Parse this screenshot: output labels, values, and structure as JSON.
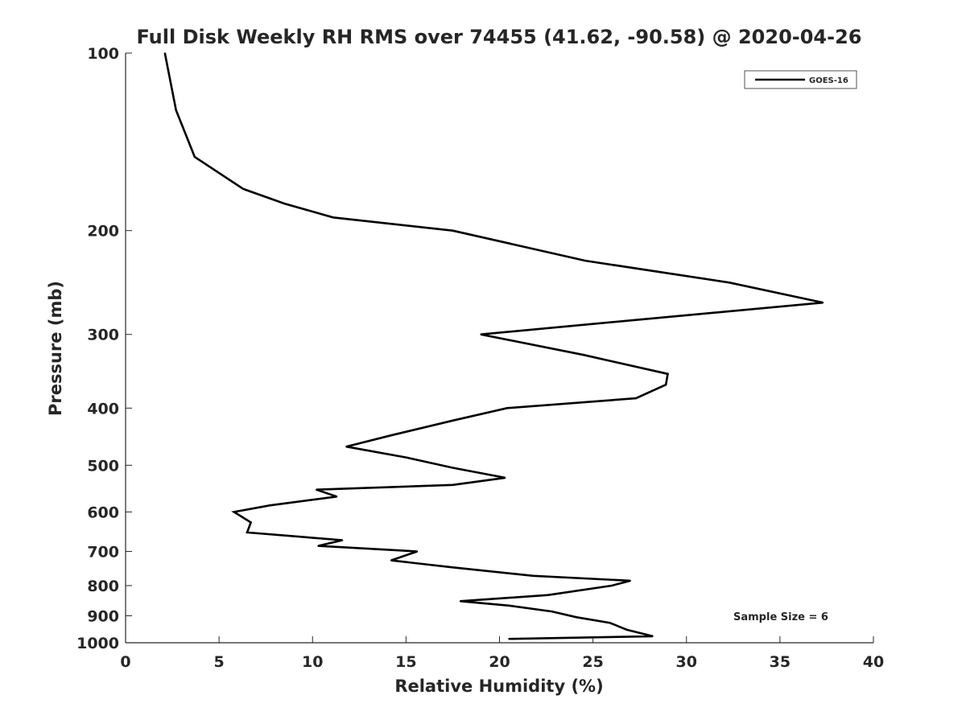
{
  "chart_data": {
    "type": "line",
    "title": "Full Disk Weekly RH RMS over 74455 (41.62, -90.58) @ 2020-04-26",
    "xlabel": "Relative Humidity (%)",
    "ylabel": "Pressure (mb)",
    "xlim": [
      0,
      40
    ],
    "ylim": [
      100,
      1000
    ],
    "y_scale": "log",
    "y_reversed": true,
    "x_ticks": [
      "0",
      "5",
      "10",
      "15",
      "20",
      "25",
      "30",
      "35",
      "40"
    ],
    "y_ticks": [
      "100",
      "200",
      "300",
      "400",
      "500",
      "600",
      "700",
      "800",
      "900",
      "1000"
    ],
    "grid": false,
    "legend_position": "top-right",
    "annotation": "Sample Size = 6",
    "series": [
      {
        "name": "GOES-16",
        "color": "#000000",
        "points": [
          [
            2.1,
            100
          ],
          [
            2.7,
            125
          ],
          [
            3.7,
            150
          ],
          [
            6.3,
            170
          ],
          [
            8.5,
            180
          ],
          [
            11.1,
            190
          ],
          [
            17.5,
            200
          ],
          [
            24.6,
            225
          ],
          [
            32.3,
            245
          ],
          [
            37.3,
            265
          ],
          [
            26.5,
            285
          ],
          [
            19.0,
            300
          ],
          [
            24.5,
            325
          ],
          [
            29.0,
            350
          ],
          [
            28.9,
            365
          ],
          [
            27.3,
            385
          ],
          [
            20.4,
            400
          ],
          [
            17.5,
            420
          ],
          [
            14.2,
            445
          ],
          [
            11.8,
            465
          ],
          [
            15.0,
            485
          ],
          [
            17.5,
            505
          ],
          [
            20.3,
            525
          ],
          [
            17.5,
            540
          ],
          [
            10.2,
            550
          ],
          [
            11.3,
            565
          ],
          [
            7.7,
            585
          ],
          [
            5.8,
            600
          ],
          [
            6.7,
            625
          ],
          [
            6.5,
            650
          ],
          [
            11.6,
            670
          ],
          [
            10.3,
            685
          ],
          [
            15.6,
            700
          ],
          [
            14.2,
            725
          ],
          [
            17.5,
            745
          ],
          [
            21.8,
            770
          ],
          [
            27.0,
            785
          ],
          [
            26.0,
            800
          ],
          [
            22.6,
            830
          ],
          [
            17.9,
            850
          ],
          [
            20.5,
            865
          ],
          [
            22.8,
            885
          ],
          [
            24.1,
            905
          ],
          [
            25.9,
            925
          ],
          [
            26.8,
            950
          ],
          [
            28.2,
            975
          ],
          [
            20.5,
            985
          ]
        ]
      }
    ]
  }
}
